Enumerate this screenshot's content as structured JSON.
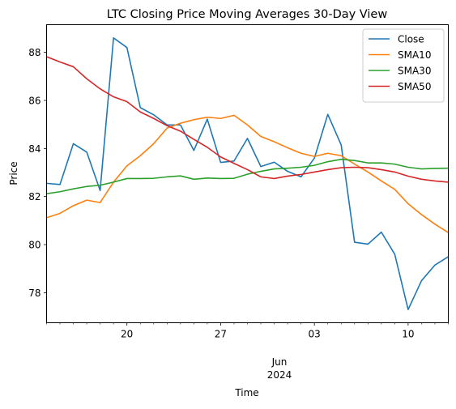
{
  "chart_data": {
    "type": "line",
    "title": "LTC Closing Price Moving Averages 30-Day View",
    "xlabel": "Time",
    "ylabel": "Price",
    "x_axis": {
      "type": "date",
      "start": "2024-05-14",
      "end": "2024-06-13",
      "major_ticks": [
        "2024-05-20",
        "2024-05-27",
        "2024-06-03",
        "2024-06-10"
      ],
      "major_tick_labels": [
        "20",
        "27",
        "03",
        "10"
      ],
      "secondary_label_lines": [
        "Jun",
        "2024"
      ],
      "secondary_label_at": "2024-06-03",
      "minor_ticks": "daily"
    },
    "ylim": [
      76.75,
      89.15
    ],
    "y_ticks": [
      78,
      80,
      82,
      84,
      86,
      88
    ],
    "y_tick_labels": [
      "78",
      "80",
      "82",
      "84",
      "86",
      "88"
    ],
    "grid": false,
    "legend_position": "top-right",
    "x": [
      "2024-05-14",
      "2024-05-15",
      "2024-05-16",
      "2024-05-17",
      "2024-05-18",
      "2024-05-19",
      "2024-05-20",
      "2024-05-21",
      "2024-05-22",
      "2024-05-23",
      "2024-05-24",
      "2024-05-25",
      "2024-05-26",
      "2024-05-27",
      "2024-05-28",
      "2024-05-29",
      "2024-05-30",
      "2024-05-31",
      "2024-06-01",
      "2024-06-02",
      "2024-06-03",
      "2024-06-04",
      "2024-06-05",
      "2024-06-06",
      "2024-06-07",
      "2024-06-08",
      "2024-06-09",
      "2024-06-10",
      "2024-06-11",
      "2024-06-12",
      "2024-06-13"
    ],
    "series": [
      {
        "name": "Close",
        "color": "#1f77b4",
        "values": [
          82.55,
          82.5,
          84.2,
          83.85,
          82.25,
          88.6,
          88.2,
          85.7,
          85.4,
          84.98,
          84.98,
          83.92,
          85.22,
          83.42,
          83.48,
          84.42,
          83.25,
          83.43,
          83.05,
          82.82,
          83.6,
          85.42,
          84.15,
          80.1,
          80.02,
          80.52,
          79.6,
          77.3,
          78.5,
          79.15,
          79.5
        ]
      },
      {
        "name": "SMA10",
        "color": "#ff7f0e",
        "values": [
          81.12,
          81.3,
          81.62,
          81.85,
          81.75,
          82.6,
          83.28,
          83.7,
          84.2,
          84.85,
          85.05,
          85.2,
          85.3,
          85.25,
          85.38,
          84.98,
          84.5,
          84.28,
          84.03,
          83.8,
          83.67,
          83.8,
          83.7,
          83.35,
          83.02,
          82.65,
          82.3,
          81.7,
          81.25,
          80.85,
          80.5
        ]
      },
      {
        "name": "SMA30",
        "color": "#2ca02c",
        "values": [
          82.12,
          82.2,
          82.32,
          82.42,
          82.47,
          82.6,
          82.75,
          82.75,
          82.76,
          82.82,
          82.86,
          82.72,
          82.77,
          82.75,
          82.76,
          82.93,
          83.05,
          83.15,
          83.18,
          83.22,
          83.3,
          83.45,
          83.55,
          83.5,
          83.4,
          83.4,
          83.35,
          83.22,
          83.15,
          83.17,
          83.18
        ]
      },
      {
        "name": "SMA50",
        "color": "#d62728",
        "values": [
          87.82,
          87.6,
          87.4,
          86.9,
          86.48,
          86.15,
          85.95,
          85.52,
          85.25,
          84.95,
          84.72,
          84.38,
          84.05,
          83.65,
          83.38,
          83.12,
          82.82,
          82.75,
          82.85,
          82.92,
          83.02,
          83.12,
          83.2,
          83.22,
          83.2,
          83.12,
          83.02,
          82.85,
          82.72,
          82.65,
          82.6
        ]
      }
    ]
  }
}
